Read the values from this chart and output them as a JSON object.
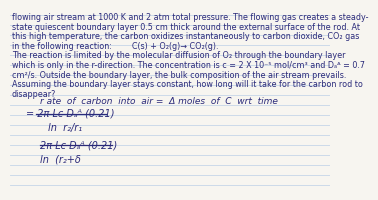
{
  "background_color": "#f7f5f0",
  "line_color": "#c5d5e8",
  "text_color": "#2a2a7a",
  "body_lines": [
    "flowing air stream at 1000 K and 2 atm total pressure. The flowing gas creates a steady-",
    "state quiescent boundary layer 0.5 cm thick around the external surface of the rod. At",
    "this high temperature, the carbon oxidizes instantaneously to carbon dioxide, CO₂ gas",
    "in the following reaction:        C(s) + O₂(g)→ CO₂(g).",
    "The reaction is limited by the molecular diffusion of O₂ through the boundary layer",
    "which is only in the r-direction. The concentration is c = 2 X 10⁻⁵ mol/cm³ and Dₐᴬ = 0.7",
    "cm²/s. Outside the boundary layer, the bulk composition of the air stream prevails.",
    "Assuming the boundary layer stays constant, how long will it take for the carbon rod to",
    "disappear?"
  ],
  "math_label": "r ate  of  carbon  into  air =  Δ moles  of  C  wrt  time",
  "eq1_num": "= 2π Lc Dₐᴬ (0.21)",
  "eq1_den": "ln  r₂/r₁",
  "eq2_num": "2π Lc Dₐᴬ (0.21)",
  "eq2_den": "ln  (r₂+δ",
  "body_fontsize": 5.8,
  "math_fontsize": 7.0,
  "label_fontsize": 6.5
}
